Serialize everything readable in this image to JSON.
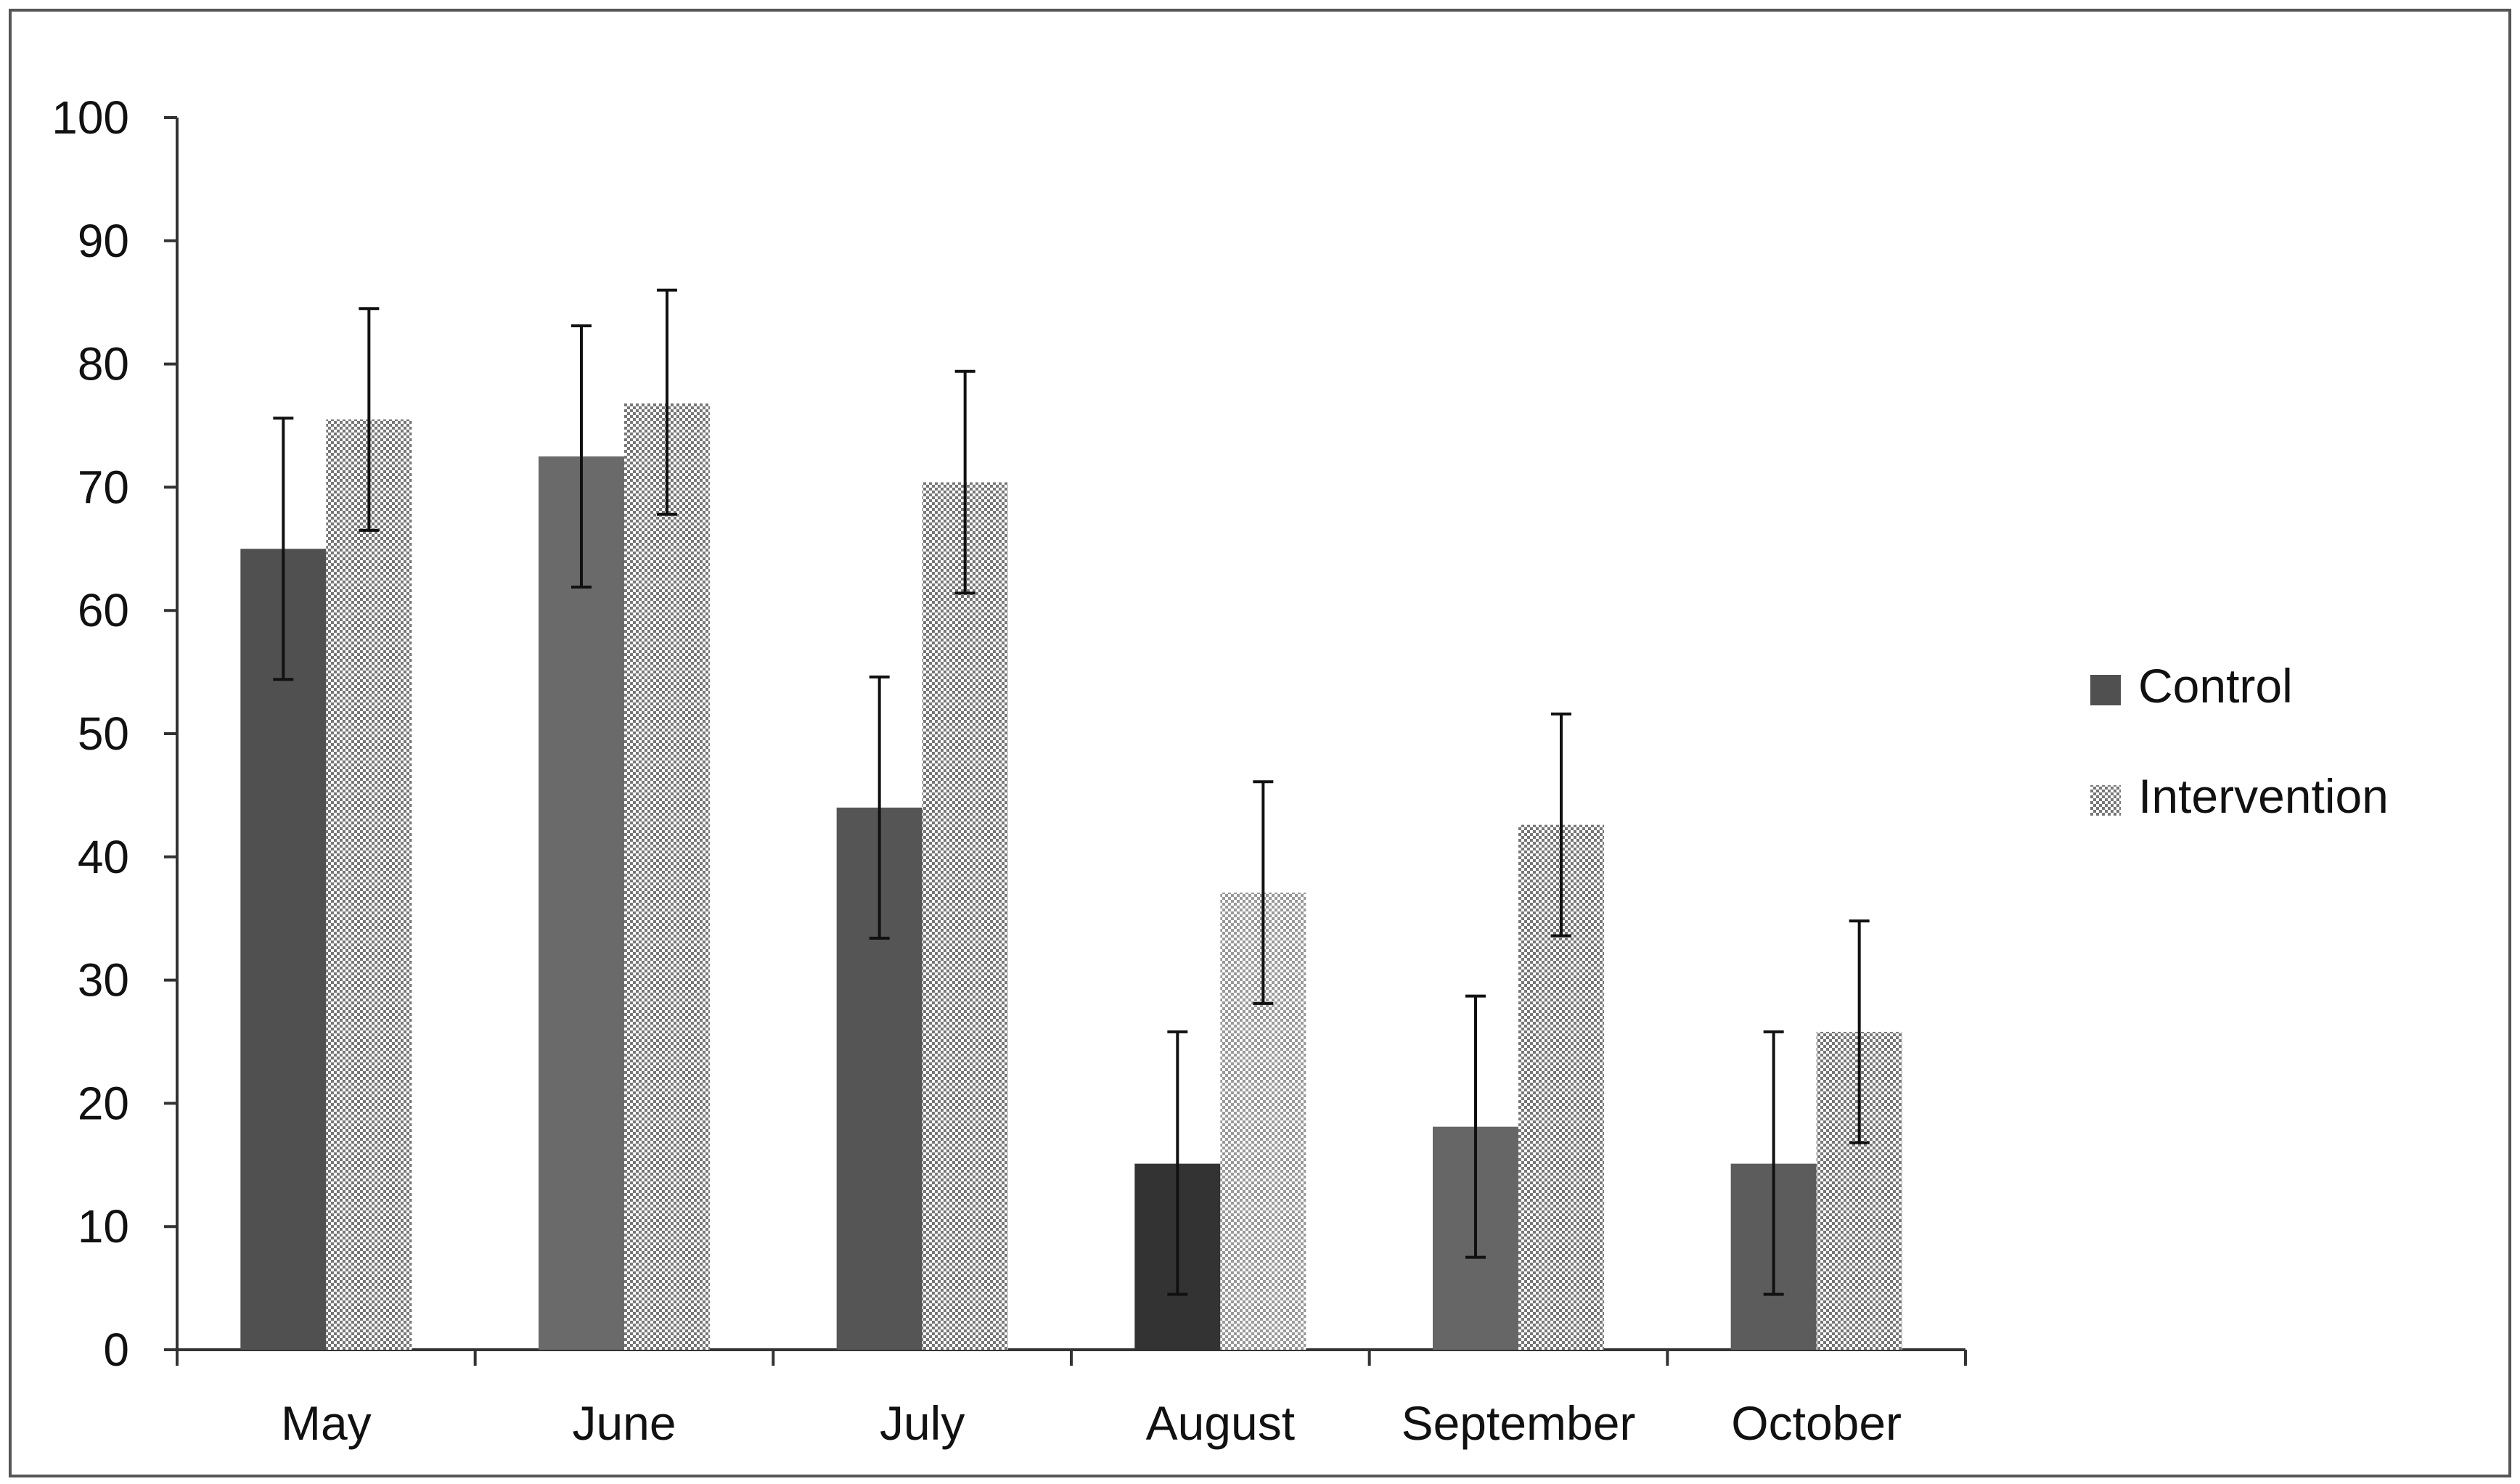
{
  "chart_data": {
    "type": "bar",
    "categories": [
      "May",
      "June",
      "July",
      "August",
      "September",
      "October"
    ],
    "series": [
      {
        "name": "Control",
        "values": [
          65,
          72.5,
          44,
          15.1,
          18.1,
          15.1
        ],
        "error_low": [
          54.4,
          61.9,
          33.4,
          4.5,
          7.5,
          4.5
        ],
        "error_high": [
          75.6,
          83.1,
          54.6,
          25.8,
          28.7,
          25.8
        ]
      },
      {
        "name": "Intervention",
        "values": [
          75.5,
          76.8,
          70.4,
          37.1,
          42.6,
          25.8
        ],
        "error_low": [
          66.5,
          67.8,
          61.4,
          28.1,
          33.6,
          16.8
        ],
        "error_high": [
          84.5,
          86,
          79.4,
          46.1,
          51.6,
          34.8
        ]
      }
    ],
    "ylim": [
      0,
      100
    ],
    "yticks": [
      0,
      10,
      20,
      30,
      40,
      50,
      60,
      70,
      80,
      90,
      100
    ],
    "legend_position": "right",
    "grid": false,
    "colors": {
      "control": [
        "#505050",
        "#6a6a6a",
        "#555555",
        "#333333",
        "#666666",
        "#5c5c5c"
      ],
      "intervention_dark": "#777777",
      "intervention_light": "#ffffff",
      "axis": "#333333",
      "error_bar": "#111111"
    }
  }
}
